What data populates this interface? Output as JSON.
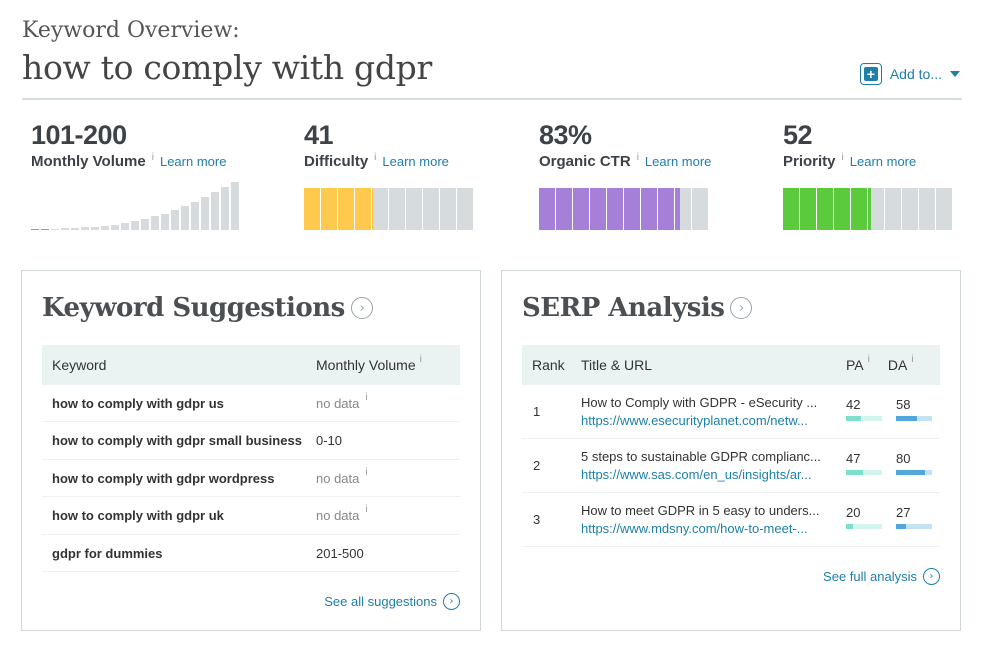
{
  "header": {
    "subtitle": "Keyword Overview:",
    "keyword": "how to comply with gdpr",
    "add_to_label": "Add to..."
  },
  "metrics": [
    {
      "value": "101-200",
      "label": "Monthly Volume",
      "info": "i",
      "learn": "Learn more",
      "volume_history": [
        1,
        1,
        1,
        2,
        2,
        3,
        4,
        5,
        6,
        8,
        10,
        13,
        16,
        19,
        23,
        28,
        33,
        38,
        44,
        50,
        56
      ]
    },
    {
      "value": "41",
      "label": "Difficulty",
      "info": "i",
      "learn": "Learn more",
      "score": 41
    },
    {
      "value": "83%",
      "label": "Organic CTR",
      "info": "i",
      "learn": "Learn more",
      "score": 83
    },
    {
      "value": "52",
      "label": "Priority",
      "info": "i",
      "learn": "Learn more",
      "score": 52
    }
  ],
  "colors": {
    "accent": "#1e7fa8",
    "difficulty": "#ffc94d",
    "ctr": "#a57fd8",
    "priority": "#5bca3c",
    "volume": "#d6dbde",
    "volume_low": "#5aafd9",
    "bar_empty": "#d6dbde",
    "pa": "#7ce0cd",
    "da": "#52a8db"
  },
  "suggestions": {
    "title": "Keyword Suggestions",
    "col_keyword": "Keyword",
    "col_volume": "Monthly Volume",
    "info": "i",
    "rows": [
      {
        "keyword": "how to comply with gdpr us",
        "volume": "no data",
        "nodata": true
      },
      {
        "keyword": "how to comply with gdpr small business",
        "volume": "0-10",
        "nodata": false
      },
      {
        "keyword": "how to comply with gdpr wordpress",
        "volume": "no data",
        "nodata": true
      },
      {
        "keyword": "how to comply with gdpr uk",
        "volume": "no data",
        "nodata": true
      },
      {
        "keyword": "gdpr for dummies",
        "volume": "201-500",
        "nodata": false
      }
    ],
    "see_all": "See all suggestions"
  },
  "serp": {
    "title": "SERP Analysis",
    "col_rank": "Rank",
    "col_title": "Title & URL",
    "col_pa": "PA",
    "col_da": "DA",
    "info": "i",
    "rows": [
      {
        "rank": "1",
        "title": "How to Comply with GDPR - eSecurity ...",
        "url": "https://www.esecurityplanet.com/netw...",
        "pa": 42,
        "da": 58
      },
      {
        "rank": "2",
        "title": "5 steps to sustainable GDPR complianc...",
        "url": "https://www.sas.com/en_us/insights/ar...",
        "pa": 47,
        "da": 80
      },
      {
        "rank": "3",
        "title": "How to meet GDPR in 5 easy to unders...",
        "url": "https://www.mdsny.com/how-to-meet-...",
        "pa": 20,
        "da": 27
      }
    ],
    "see_full": "See full analysis"
  }
}
